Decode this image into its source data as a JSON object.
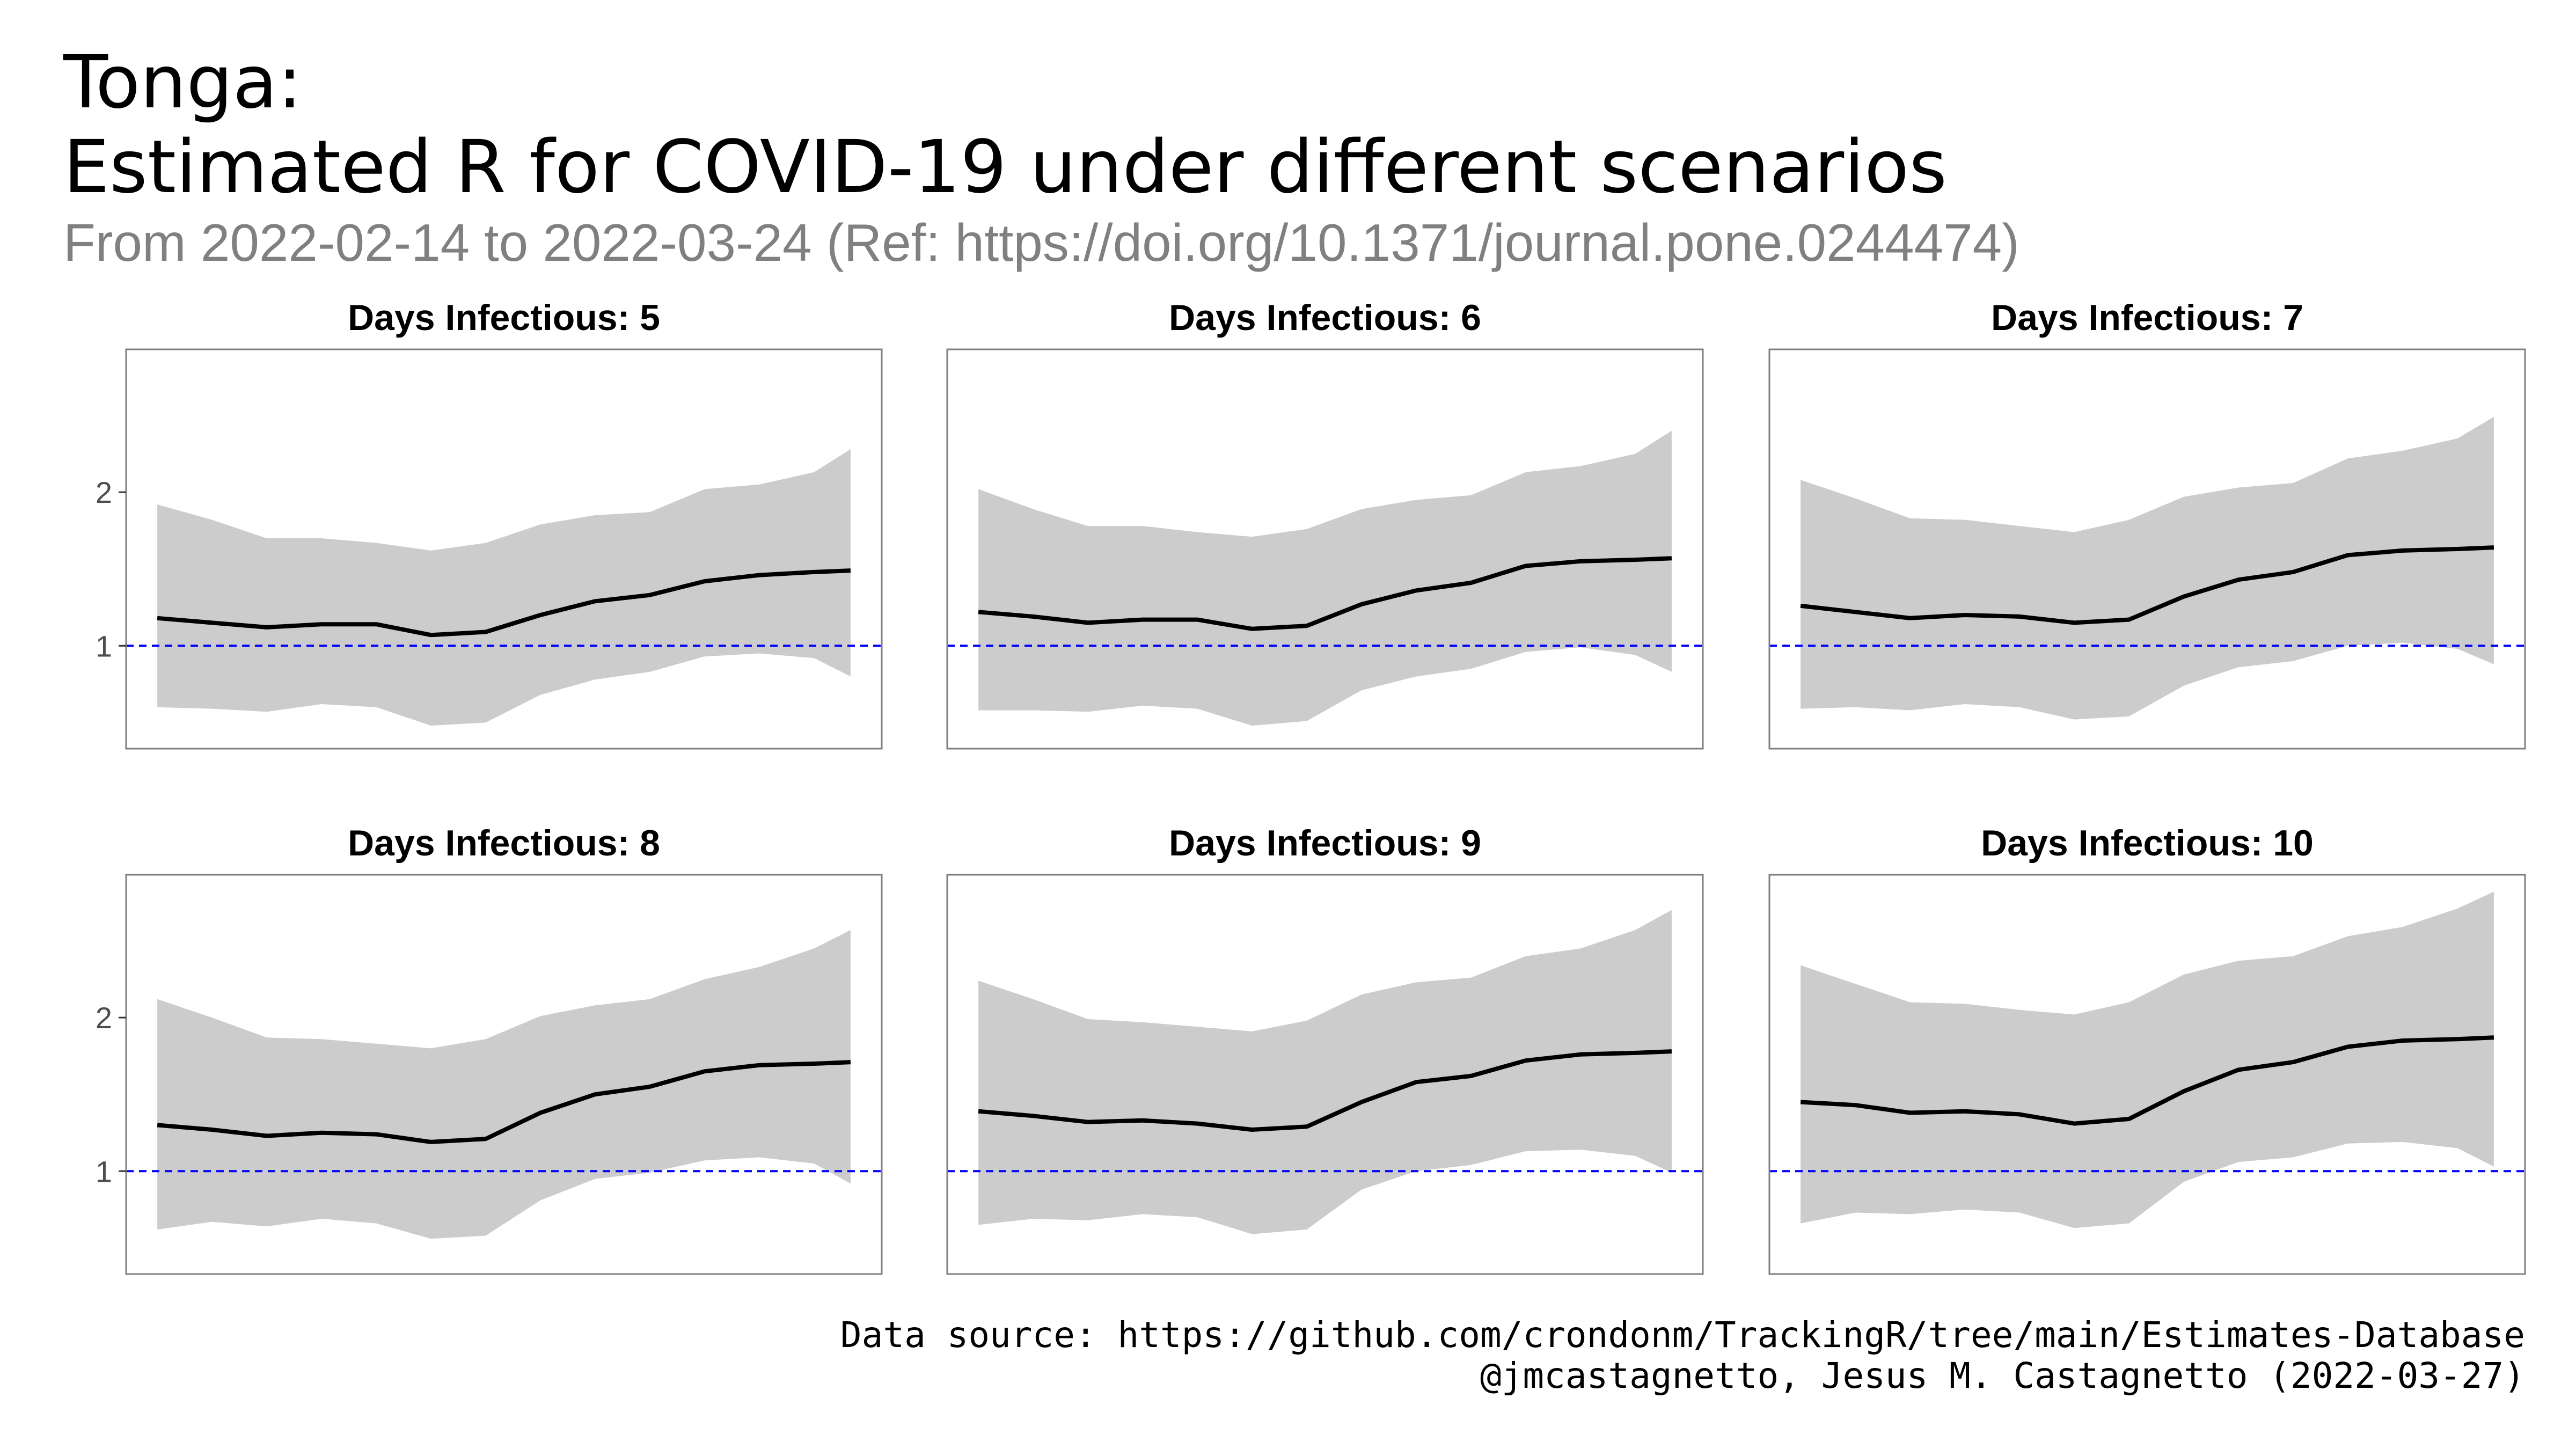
{
  "title_line1": "Tonga:",
  "title_line2": "Estimated R for COVID-19 under different scenarios",
  "subtitle": "From 2022-02-14 to 2022-03-24 (Ref: https://doi.org/10.1371/journal.pone.0244474)",
  "caption_line1": "Data source: https://github.com/crondonm/TrackingR/tree/main/Estimates-Database",
  "caption_line2": "@jmcastagnetto, Jesus M. Castagnetto (2022-03-27)",
  "colors": {
    "ribbon": "#cccccc",
    "line": "#000000",
    "reference": "#0000ff",
    "panel_border": "#7f7f7f"
  },
  "chart_data": {
    "type": "line",
    "x_start": "2022-02-14",
    "x_end": "2022-03-24",
    "ylim": [
      0.33,
      2.93
    ],
    "y_ticks": [
      1,
      2
    ],
    "reference_line": 1,
    "legend": "none",
    "grid": false,
    "panels": [
      {
        "label": "Days Infectious: 5",
        "x": [
          "2022-02-14",
          "2022-02-17",
          "2022-02-20",
          "2022-02-23",
          "2022-02-26",
          "2022-03-01",
          "2022-03-04",
          "2022-03-07",
          "2022-03-10",
          "2022-03-13",
          "2022-03-16",
          "2022-03-19",
          "2022-03-22",
          "2022-03-24"
        ],
        "estimate": [
          1.18,
          1.15,
          1.12,
          1.14,
          1.14,
          1.07,
          1.09,
          1.2,
          1.29,
          1.33,
          1.42,
          1.46,
          1.48,
          1.49
        ],
        "lower": [
          0.6,
          0.59,
          0.57,
          0.62,
          0.6,
          0.48,
          0.5,
          0.68,
          0.78,
          0.83,
          0.93,
          0.95,
          0.92,
          0.8
        ],
        "upper": [
          1.92,
          1.82,
          1.7,
          1.7,
          1.67,
          1.62,
          1.67,
          1.79,
          1.85,
          1.87,
          2.02,
          2.05,
          2.13,
          2.28
        ]
      },
      {
        "label": "Days Infectious: 6",
        "x": [
          "2022-02-14",
          "2022-02-17",
          "2022-02-20",
          "2022-02-23",
          "2022-02-26",
          "2022-03-01",
          "2022-03-04",
          "2022-03-07",
          "2022-03-10",
          "2022-03-13",
          "2022-03-16",
          "2022-03-19",
          "2022-03-22",
          "2022-03-24"
        ],
        "estimate": [
          1.22,
          1.19,
          1.15,
          1.17,
          1.17,
          1.11,
          1.13,
          1.27,
          1.36,
          1.41,
          1.52,
          1.55,
          1.56,
          1.57
        ],
        "lower": [
          0.58,
          0.58,
          0.57,
          0.61,
          0.59,
          0.48,
          0.51,
          0.71,
          0.8,
          0.85,
          0.96,
          0.99,
          0.94,
          0.83
        ],
        "upper": [
          2.02,
          1.89,
          1.78,
          1.78,
          1.74,
          1.71,
          1.76,
          1.89,
          1.95,
          1.98,
          2.13,
          2.17,
          2.25,
          2.4
        ]
      },
      {
        "label": "Days Infectious: 7",
        "x": [
          "2022-02-14",
          "2022-02-17",
          "2022-02-20",
          "2022-02-23",
          "2022-02-26",
          "2022-03-01",
          "2022-03-04",
          "2022-03-07",
          "2022-03-10",
          "2022-03-13",
          "2022-03-16",
          "2022-03-19",
          "2022-03-22",
          "2022-03-24"
        ],
        "estimate": [
          1.26,
          1.22,
          1.18,
          1.2,
          1.19,
          1.15,
          1.17,
          1.32,
          1.43,
          1.48,
          1.59,
          1.62,
          1.63,
          1.64
        ],
        "lower": [
          0.59,
          0.6,
          0.58,
          0.62,
          0.6,
          0.52,
          0.54,
          0.74,
          0.86,
          0.9,
          1.0,
          1.02,
          0.98,
          0.88
        ],
        "upper": [
          2.08,
          1.96,
          1.83,
          1.82,
          1.78,
          1.74,
          1.82,
          1.97,
          2.03,
          2.06,
          2.22,
          2.27,
          2.35,
          2.49
        ]
      },
      {
        "label": "Days Infectious: 8",
        "x": [
          "2022-02-14",
          "2022-02-17",
          "2022-02-20",
          "2022-02-23",
          "2022-02-26",
          "2022-03-01",
          "2022-03-04",
          "2022-03-07",
          "2022-03-10",
          "2022-03-13",
          "2022-03-16",
          "2022-03-19",
          "2022-03-22",
          "2022-03-24"
        ],
        "estimate": [
          1.3,
          1.27,
          1.23,
          1.25,
          1.24,
          1.19,
          1.21,
          1.38,
          1.5,
          1.55,
          1.65,
          1.69,
          1.7,
          1.71
        ],
        "lower": [
          0.62,
          0.67,
          0.64,
          0.69,
          0.66,
          0.56,
          0.58,
          0.81,
          0.95,
          0.99,
          1.07,
          1.09,
          1.05,
          0.92
        ],
        "upper": [
          2.12,
          2.0,
          1.87,
          1.86,
          1.83,
          1.8,
          1.86,
          2.01,
          2.08,
          2.12,
          2.25,
          2.33,
          2.45,
          2.57
        ]
      },
      {
        "label": "Days Infectious: 9",
        "x": [
          "2022-02-14",
          "2022-02-17",
          "2022-02-20",
          "2022-02-23",
          "2022-02-26",
          "2022-03-01",
          "2022-03-04",
          "2022-03-07",
          "2022-03-10",
          "2022-03-13",
          "2022-03-16",
          "2022-03-19",
          "2022-03-22",
          "2022-03-24"
        ],
        "estimate": [
          1.39,
          1.36,
          1.32,
          1.33,
          1.31,
          1.27,
          1.29,
          1.45,
          1.58,
          1.62,
          1.72,
          1.76,
          1.77,
          1.78
        ],
        "lower": [
          0.65,
          0.69,
          0.68,
          0.72,
          0.7,
          0.59,
          0.62,
          0.88,
          1.0,
          1.04,
          1.13,
          1.14,
          1.1,
          0.99
        ],
        "upper": [
          2.24,
          2.12,
          1.99,
          1.97,
          1.94,
          1.91,
          1.98,
          2.15,
          2.23,
          2.26,
          2.4,
          2.45,
          2.57,
          2.7
        ]
      },
      {
        "label": "Days Infectious: 10",
        "x": [
          "2022-02-14",
          "2022-02-17",
          "2022-02-20",
          "2022-02-23",
          "2022-02-26",
          "2022-03-01",
          "2022-03-04",
          "2022-03-07",
          "2022-03-10",
          "2022-03-13",
          "2022-03-16",
          "2022-03-19",
          "2022-03-22",
          "2022-03-24"
        ],
        "estimate": [
          1.45,
          1.43,
          1.38,
          1.39,
          1.37,
          1.31,
          1.34,
          1.52,
          1.66,
          1.71,
          1.81,
          1.85,
          1.86,
          1.87
        ],
        "lower": [
          0.66,
          0.73,
          0.72,
          0.75,
          0.73,
          0.63,
          0.66,
          0.93,
          1.06,
          1.09,
          1.18,
          1.19,
          1.15,
          1.03
        ],
        "upper": [
          2.34,
          2.22,
          2.1,
          2.09,
          2.05,
          2.02,
          2.1,
          2.28,
          2.37,
          2.4,
          2.53,
          2.59,
          2.71,
          2.82
        ]
      }
    ]
  }
}
